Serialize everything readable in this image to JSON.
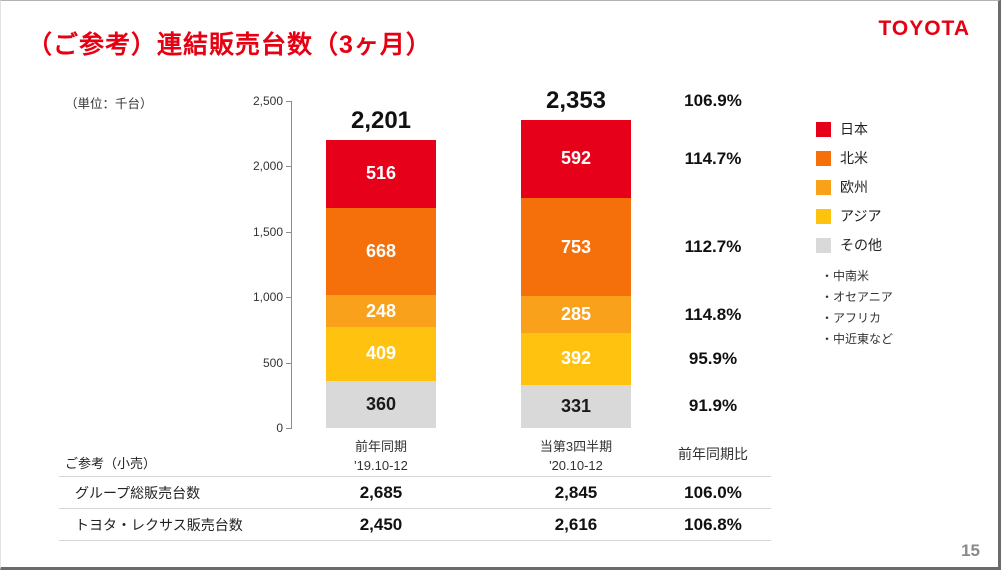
{
  "page": {
    "title": "（ご参考）連結販売台数（3ヶ月）",
    "brand": "TOYOTA",
    "unit_label": "（単位：千台）",
    "page_number": "15"
  },
  "chart_data": {
    "type": "bar",
    "stacked": true,
    "title": "連結販売台数（3ヶ月）",
    "ylabel": "千台",
    "ylim": [
      0,
      2500
    ],
    "ytick_values": [
      0,
      500,
      1000,
      1500,
      2000,
      2500
    ],
    "ytick_labels": [
      "0",
      "500",
      "1,000",
      "1,500",
      "2,000",
      "2,500"
    ],
    "categories": [
      {
        "line1": "前年同期",
        "line2": "'19.10-12"
      },
      {
        "line1": "当第3四半期",
        "line2": "'20.10-12"
      }
    ],
    "series": [
      {
        "name": "日本",
        "color": "#e60019",
        "text_color": "#ffffff",
        "values": [
          516,
          592
        ],
        "yoy": "114.7%"
      },
      {
        "name": "北米",
        "color": "#f56f0a",
        "text_color": "#ffffff",
        "values": [
          668,
          753
        ],
        "yoy": "112.7%"
      },
      {
        "name": "欧州",
        "color": "#f9a11b",
        "text_color": "#ffffff",
        "values": [
          248,
          285
        ],
        "yoy": "114.8%"
      },
      {
        "name": "アジア",
        "color": "#ffc20e",
        "text_color": "#ffffff",
        "values": [
          409,
          392
        ],
        "yoy": "95.9%"
      },
      {
        "name": "その他",
        "color": "#d9d9d9",
        "text_color": "#1a1a1a",
        "values": [
          360,
          331
        ],
        "yoy": "91.9%"
      }
    ],
    "totals": [
      "2,201",
      "2,353"
    ],
    "total_yoy": "106.9%",
    "yoy_header": "前年同期比",
    "legend_position": "right",
    "legend_notes": [
      "・中南米",
      "・オセアニア",
      "・アフリカ",
      "・中近東など"
    ],
    "grid": false
  },
  "table": {
    "caption": "ご参考（小売）",
    "rows": [
      {
        "label": "グループ総販売台数",
        "values": [
          "2,685",
          "2,845"
        ],
        "yoy": "106.0%"
      },
      {
        "label": "トヨタ・レクサス販売台数",
        "values": [
          "2,450",
          "2,616"
        ],
        "yoy": "106.8%"
      }
    ]
  }
}
